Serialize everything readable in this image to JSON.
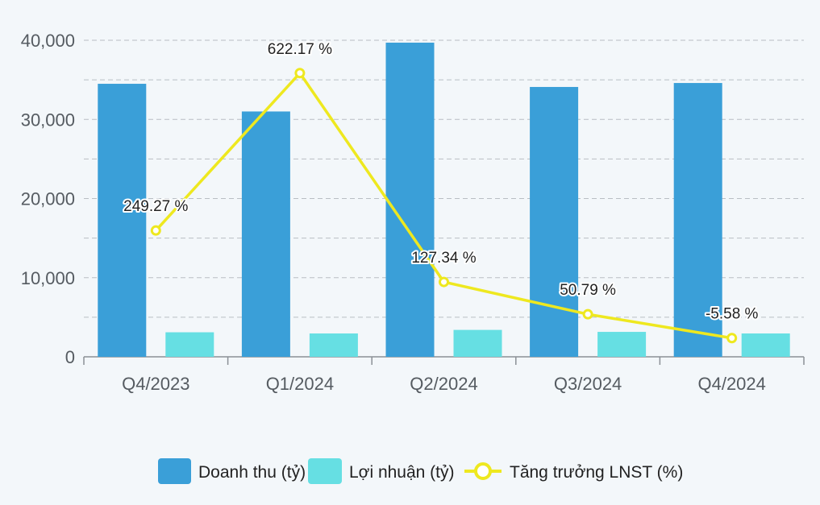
{
  "chart_data": {
    "type": "bar",
    "title": "",
    "categories": [
      "Q4/2023",
      "Q1/2024",
      "Q2/2024",
      "Q3/2024",
      "Q4/2024"
    ],
    "series": [
      {
        "name": "Doanh thu (tỷ)",
        "kind": "bar",
        "color": "#3a9fd8",
        "values": [
          34500,
          31000,
          39700,
          34100,
          34600
        ]
      },
      {
        "name": "Lợi nhuận (tỷ)",
        "kind": "bar",
        "color": "#66dfe3",
        "values": [
          3100,
          2950,
          3400,
          3150,
          2950
        ]
      },
      {
        "name": "Tăng trưởng LNST (%)",
        "kind": "line",
        "color": "#eee81f",
        "values": [
          249.27,
          622.17,
          127.34,
          50.79,
          -5.58
        ],
        "labels": [
          "249.27 %",
          "622.17 %",
          "127.34 %",
          "50.79 %",
          "-5.58 %"
        ]
      }
    ],
    "y_axis": {
      "ticks": [
        "0",
        "10,000",
        "20,000",
        "30,000",
        "40,000"
      ],
      "tick_values": [
        0,
        10000,
        20000,
        30000,
        40000
      ],
      "ylim": [
        0,
        40000
      ]
    },
    "y2_axis": {
      "visible": false,
      "ylim": [
        -50,
        700
      ]
    },
    "grid": true,
    "legend": "bottom-center"
  }
}
